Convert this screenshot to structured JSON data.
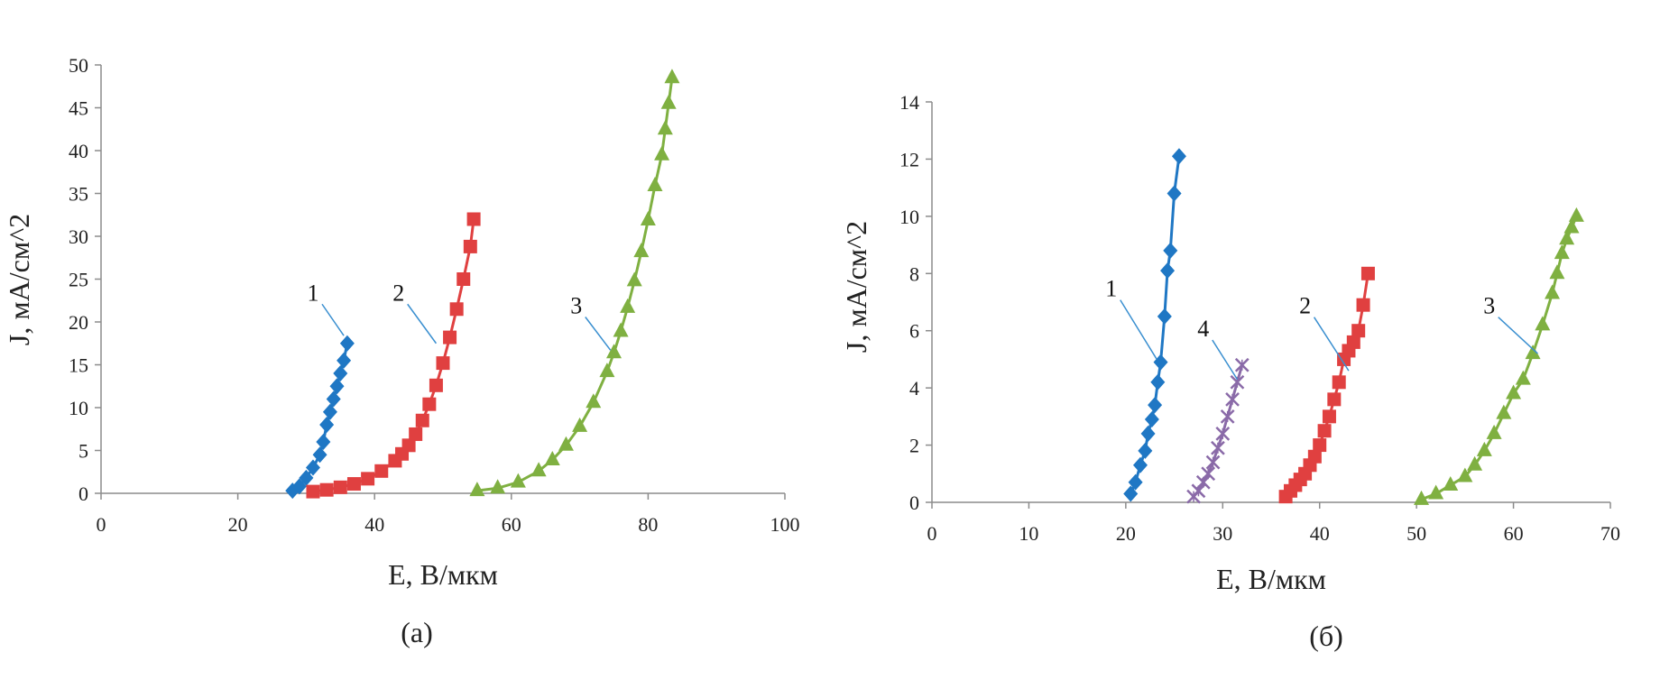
{
  "colors": {
    "series1": "#1f77c4",
    "series2": "#e04040",
    "series3": "#7fb041",
    "series4": "#8a6aa8",
    "leader": "#3a8fd0",
    "axis": "#8c8c8c"
  },
  "chart_data": [
    {
      "type": "scatter",
      "caption": "(а)",
      "xlabel": "E,  В/мкм",
      "ylabel": "J,  мА/см^2",
      "xlim": [
        0,
        100
      ],
      "ylim": [
        0,
        50
      ],
      "xticks": [
        0,
        20,
        40,
        60,
        80,
        100
      ],
      "yticks": [
        0,
        5,
        10,
        15,
        20,
        25,
        30,
        35,
        40,
        45,
        50
      ],
      "grid": false,
      "series": [
        {
          "label": "1",
          "marker": "diamond",
          "color": "#1f77c4",
          "label_pos": [
            31,
            22.5
          ],
          "leader_to": [
            35.5,
            18.4
          ],
          "x": [
            28,
            29,
            30,
            31,
            32,
            32.5,
            33,
            33.5,
            34,
            34.5,
            35,
            35.5,
            36
          ],
          "y": [
            0.3,
            0.8,
            1.8,
            3,
            4.5,
            6,
            8,
            9.5,
            11,
            12.5,
            14,
            15.5,
            17.5
          ]
        },
        {
          "label": "2",
          "marker": "square",
          "color": "#e04040",
          "label_pos": [
            43.5,
            22.5
          ],
          "leader_to": [
            49,
            17.5
          ],
          "x": [
            31,
            33,
            35,
            37,
            39,
            41,
            43,
            44,
            45,
            46,
            47,
            48,
            49,
            50,
            51,
            52,
            53,
            54,
            54.5
          ],
          "y": [
            0.2,
            0.4,
            0.7,
            1.1,
            1.7,
            2.6,
            3.8,
            4.6,
            5.6,
            6.9,
            8.5,
            10.4,
            12.6,
            15.2,
            18.2,
            21.5,
            25,
            28.8,
            32
          ]
        },
        {
          "label": "3",
          "marker": "triangle",
          "color": "#7fb041",
          "label_pos": [
            69.5,
            21
          ],
          "leader_to": [
            74.5,
            16.7
          ],
          "x": [
            55,
            58,
            61,
            64,
            66,
            68,
            70,
            72,
            74,
            75,
            76,
            77,
            78,
            79,
            80,
            81,
            82,
            82.5,
            83,
            83.5
          ],
          "y": [
            0.3,
            0.6,
            1.3,
            2.6,
            3.9,
            5.6,
            7.8,
            10.6,
            14.2,
            16.4,
            18.9,
            21.7,
            24.8,
            28.2,
            31.9,
            35.9,
            39.5,
            42.5,
            45.5,
            48.5
          ]
        }
      ]
    },
    {
      "type": "scatter",
      "caption": "(б)",
      "xlabel": "E,  В/мкм",
      "ylabel": "J,  мА/см^2",
      "xlim": [
        0,
        70
      ],
      "ylim": [
        0,
        14
      ],
      "xticks": [
        0,
        10,
        20,
        30,
        40,
        50,
        60,
        70
      ],
      "yticks": [
        0,
        2,
        4,
        6,
        8,
        10,
        12,
        14
      ],
      "grid": false,
      "series": [
        {
          "label": "1",
          "marker": "diamond",
          "color": "#1f77c4",
          "label_pos": [
            18.5,
            7.2
          ],
          "leader_to": [
            23.2,
            5
          ],
          "x": [
            20.5,
            21,
            21.5,
            22,
            22.3,
            22.7,
            23,
            23.3,
            23.6,
            24,
            24.3,
            24.6,
            25,
            25.5
          ],
          "y": [
            0.3,
            0.7,
            1.3,
            1.8,
            2.4,
            2.9,
            3.4,
            4.2,
            4.9,
            6.5,
            8.1,
            8.8,
            10.8,
            12.1
          ]
        },
        {
          "label": "4",
          "marker": "cross",
          "color": "#8a6aa8",
          "label_pos": [
            28,
            5.8
          ],
          "leader_to": [
            31.5,
            4.3
          ],
          "x": [
            27,
            27.5,
            28,
            28.5,
            29,
            29.5,
            30,
            30.5,
            31,
            31.5,
            32
          ],
          "y": [
            0.2,
            0.4,
            0.7,
            1.0,
            1.4,
            1.9,
            2.4,
            3.0,
            3.6,
            4.2,
            4.8
          ]
        },
        {
          "label": "2",
          "marker": "square",
          "color": "#e04040",
          "label_pos": [
            38.5,
            6.6
          ],
          "leader_to": [
            43,
            4.6
          ],
          "x": [
            36.5,
            37,
            37.5,
            38,
            38.5,
            39,
            39.5,
            40,
            40.5,
            41,
            41.5,
            42,
            42.5,
            43,
            43.5,
            44,
            44.5,
            45
          ],
          "y": [
            0.2,
            0.4,
            0.6,
            0.8,
            1.0,
            1.3,
            1.6,
            2.0,
            2.5,
            3.0,
            3.6,
            4.2,
            5.0,
            5.3,
            5.6,
            6.0,
            6.9,
            8.0
          ]
        },
        {
          "label": "3",
          "marker": "triangle",
          "color": "#7fb041",
          "label_pos": [
            57.5,
            6.6
          ],
          "leader_to": [
            62.5,
            5.2
          ],
          "x": [
            50.5,
            52,
            53.5,
            55,
            56,
            57,
            58,
            59,
            60,
            61,
            62,
            63,
            64,
            64.5,
            65,
            65.5,
            66,
            66.5
          ],
          "y": [
            0.1,
            0.3,
            0.6,
            0.9,
            1.3,
            1.8,
            2.4,
            3.1,
            3.8,
            4.3,
            5.2,
            6.2,
            7.3,
            8.0,
            8.7,
            9.2,
            9.6,
            10.0
          ]
        }
      ]
    }
  ]
}
